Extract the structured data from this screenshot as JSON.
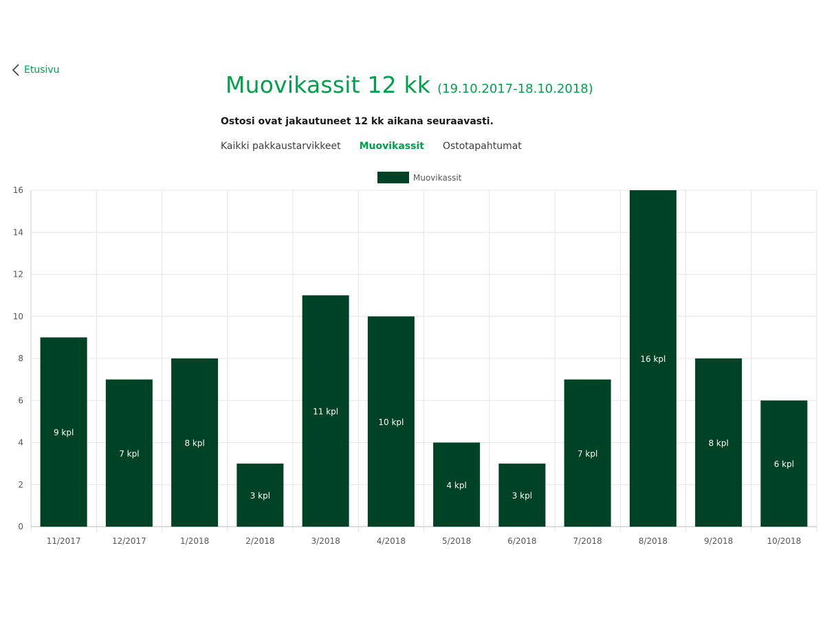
{
  "nav": {
    "back_label": "Etusivu"
  },
  "header": {
    "title": "Muovikassit 12 kk",
    "range": "(19.10.2017-18.10.2018)",
    "subtitle": "Ostosi ovat jakautuneet 12 kk aikana seuraavasti."
  },
  "tabs": [
    {
      "label": "Kaikki pakkaustarvikkeet",
      "active": false
    },
    {
      "label": "Muovikassit",
      "active": true
    },
    {
      "label": "Ostotapahtumat",
      "active": false
    }
  ],
  "colors": {
    "accent": "#00a04b",
    "bar": "#004225",
    "grid": "#e6e6e6",
    "axis_text": "#555555"
  },
  "chart_data": {
    "type": "bar",
    "title": "",
    "xlabel": "",
    "ylabel": "",
    "ylim": [
      0,
      16
    ],
    "yticks": [
      0,
      2,
      4,
      6,
      8,
      10,
      12,
      14,
      16
    ],
    "grid": true,
    "legend_position": "top-center",
    "categories": [
      "11/2017",
      "12/2017",
      "1/2018",
      "2/2018",
      "3/2018",
      "4/2018",
      "5/2018",
      "6/2018",
      "7/2018",
      "8/2018",
      "9/2018",
      "10/2018"
    ],
    "series": [
      {
        "name": "Muovikassit",
        "values": [
          9,
          7,
          8,
          3,
          11,
          10,
          4,
          3,
          7,
          16,
          8,
          6
        ],
        "labels": [
          "9 kpl",
          "7 kpl",
          "8 kpl",
          "3 kpl",
          "11 kpl",
          "10 kpl",
          "4 kpl",
          "3 kpl",
          "7 kpl",
          "16 kpl",
          "8 kpl",
          "6 kpl"
        ]
      }
    ]
  }
}
